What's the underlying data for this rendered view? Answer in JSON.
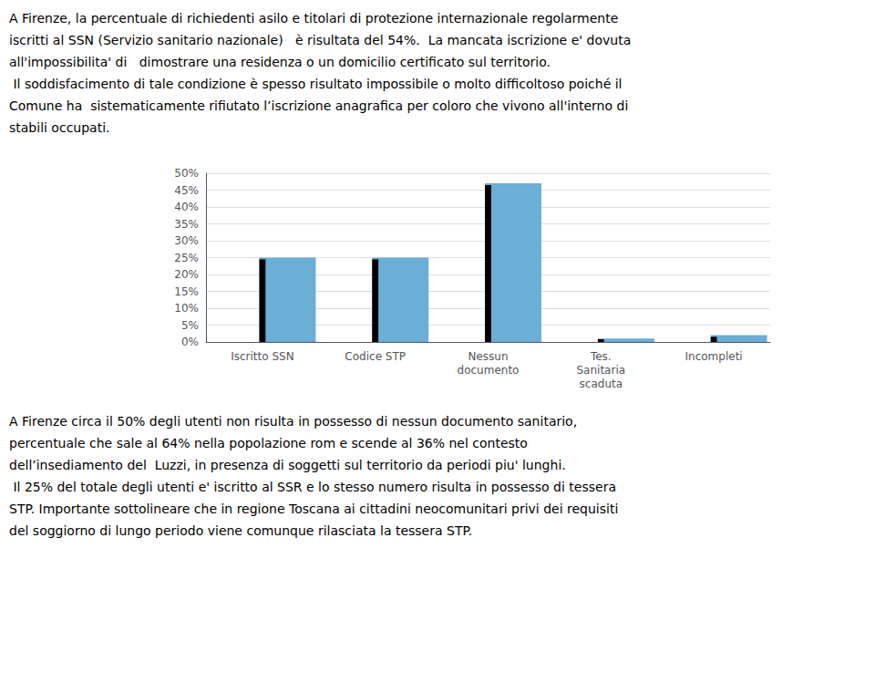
{
  "chart_data": {
    "type": "bar",
    "categories": [
      "Iscritto SSN",
      "Codice STP",
      "Nessun\ndocumento",
      "Tes.\nSanitaria\nscaduta",
      "Incompleti"
    ],
    "series": [
      {
        "color": "#6baed6",
        "values": [
          0.25,
          0.25,
          0.47,
          0.01,
          0.02
        ]
      },
      {
        "color": "#000000",
        "values": [
          0.245,
          0.245,
          0.465,
          0.008,
          0.015
        ]
      }
    ],
    "ylim": [
      0,
      0.5
    ],
    "yticks": [
      {
        "value": 0.0,
        "label": "0%"
      },
      {
        "value": 0.05,
        "label": "5%"
      },
      {
        "value": 0.1,
        "label": "10%"
      },
      {
        "value": 0.15,
        "label": "15%"
      },
      {
        "value": 0.2,
        "label": "20%"
      },
      {
        "value": 0.25,
        "label": "25%"
      },
      {
        "value": 0.3,
        "label": "30%"
      },
      {
        "value": 0.35,
        "label": "35%"
      },
      {
        "value": 0.4,
        "label": "40%"
      },
      {
        "value": 0.45,
        "label": "45%"
      },
      {
        "value": 0.5,
        "label": "50%"
      }
    ],
    "grid": true,
    "annotations": [
      "A Firenze, la percentuale di richiedenti asilo e titolari di protezione internazionale regolarmente\niscritti al SSN (Servizio sanitario nazionale)   è risultata del 54%.  La mancata iscrizione e' dovuta\nall'impossibilita' di   dimostrare una residenza o un domicilio certificato sul territorio.\n Il soddisfacimento di tale condizione è spesso risultato impossibile o molto difficoltoso poiché il\nComune ha  sistematicamente rifiutato l’iscrizione anagrafica per coloro che vivono all'interno di\nstabili occupati.",
      "A Firenze circa il 50% degli utenti non risulta in possesso di nessun documento sanitario,\npercentuale che sale al 64% nella popolazione rom e scende al 36% nel contesto\ndell’insediamento del  Luzzi, in presenza di soggetti sul territorio da periodi piu' lunghi.\n Il 25% del totale degli utenti e' iscritto al SSR e lo stesso numero risulta in possesso di tessera\nSTP. Importante sottolineare che in regione Toscana ai cittadini neocomunitari privi dei requisiti\ndel soggiorno di lungo periodo viene comunque rilasciata la tessera STP."
    ]
  }
}
